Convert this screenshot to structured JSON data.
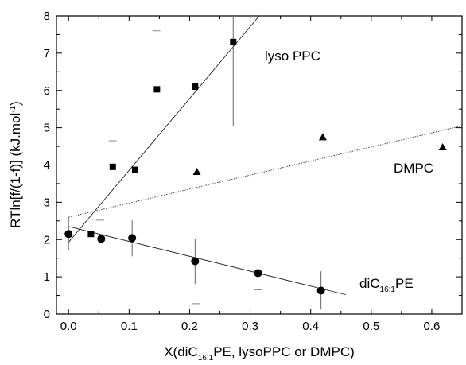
{
  "chart_data": {
    "type": "scatter",
    "xlabel_main": "X(diC",
    "xlabel_sub": "16:1",
    "xlabel_rest": "PE, lysoPPC or DMPC)",
    "ylabel_main": "RTln[f/(1-f)] (kJ.mol",
    "ylabel_sup": "-1",
    "ylabel_close": ")",
    "xlim": [
      -0.02,
      0.65
    ],
    "ylim": [
      0,
      8
    ],
    "xticks": [
      0.0,
      0.1,
      0.2,
      0.3,
      0.4,
      0.5,
      0.6
    ],
    "xtick_labels": [
      "0.0",
      "0.1",
      "0.2",
      "0.3",
      "0.4",
      "0.5",
      "0.6"
    ],
    "yticks": [
      0,
      1,
      2,
      3,
      4,
      5,
      6,
      7,
      8
    ],
    "ytick_labels": [
      "0",
      "1",
      "2",
      "3",
      "4",
      "5",
      "6",
      "7",
      "8"
    ],
    "series": [
      {
        "name": "lyso PPC",
        "marker": "square",
        "points": [
          [
            0.0,
            2.15
          ],
          [
            0.037,
            2.15
          ],
          [
            0.073,
            3.95
          ],
          [
            0.11,
            3.87
          ],
          [
            0.146,
            6.03
          ],
          [
            0.209,
            6.1
          ],
          [
            0.272,
            7.3
          ]
        ],
        "error_bars": [
          [
            0.272,
            5.05,
            8.0
          ]
        ],
        "fit": [
          [
            0.0,
            1.93
          ],
          [
            0.315,
            8.0
          ]
        ]
      },
      {
        "name": "DMPC",
        "marker": "triangle",
        "points": [
          [
            0.212,
            3.82
          ],
          [
            0.42,
            4.75
          ],
          [
            0.618,
            4.48
          ]
        ],
        "fit_dotted": [
          [
            0.0,
            2.6
          ],
          [
            0.65,
            5.05
          ]
        ]
      },
      {
        "name_main": "diC",
        "name_sub": "16:1",
        "name_rest": "PE",
        "marker": "circle",
        "points": [
          [
            0.0,
            2.15
          ],
          [
            0.054,
            2.02
          ],
          [
            0.105,
            2.04
          ],
          [
            0.209,
            1.42
          ],
          [
            0.313,
            1.1
          ],
          [
            0.417,
            0.63
          ]
        ],
        "error_bars": [
          [
            0.0,
            1.7,
            2.6
          ],
          [
            0.105,
            1.55,
            2.52
          ],
          [
            0.209,
            0.8,
            2.02
          ],
          [
            0.417,
            0.12,
            1.15
          ]
        ],
        "fit": [
          [
            0.0,
            2.35
          ],
          [
            0.458,
            0.52
          ]
        ]
      }
    ],
    "stray_marks": [
      [
        0.073,
        4.65
      ],
      [
        0.052,
        2.52
      ],
      [
        0.313,
        0.65
      ],
      [
        0.21,
        0.28
      ],
      [
        0.145,
        7.6
      ]
    ]
  }
}
